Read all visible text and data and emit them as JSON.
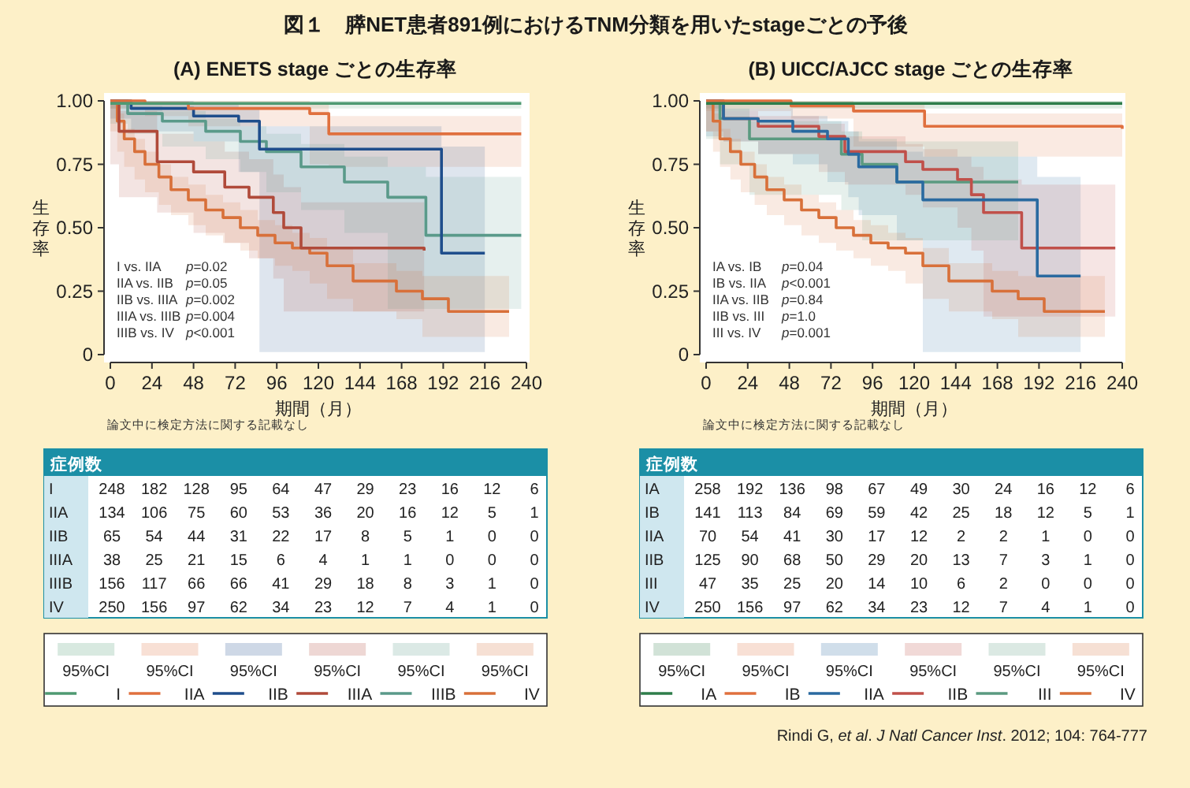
{
  "chart_data": [
    {
      "type": "step",
      "title": "(A) ENETS stage ごとの生存率",
      "xlabel": "期間（月）",
      "ylabel": "生存率",
      "xlim": [
        0,
        240
      ],
      "ylim": [
        0,
        1
      ],
      "xticks": [
        0,
        24,
        48,
        72,
        96,
        120,
        144,
        168,
        192,
        216,
        240
      ],
      "yticks": [
        0,
        {
          "value": 0.25,
          "label": "0.25"
        },
        {
          "value": 0.5,
          "label": "0.50"
        },
        {
          "value": 0.75,
          "label": "0.75"
        },
        {
          "value": 1,
          "label": "1.00"
        }
      ],
      "legend": "bottom",
      "series": [
        {
          "name": "I",
          "color": "#4f9a72",
          "x": [
            0,
            237
          ],
          "values": [
            0.99,
            0.99
          ],
          "lower": [
            0.97,
            0.97
          ],
          "upper": [
            1,
            1
          ]
        },
        {
          "name": "IIA",
          "color": "#e0703e",
          "x": [
            0,
            20,
            45,
            115,
            126,
            237
          ],
          "values": [
            1,
            0.99,
            0.97,
            0.95,
            0.87,
            0.87
          ],
          "lower": [
            1,
            0.97,
            0.94,
            0.9,
            0.75,
            0.74
          ],
          "upper": [
            1,
            1,
            1,
            0.99,
            0.94,
            0.94
          ]
        },
        {
          "name": "IIB",
          "color": "#1f4e8c",
          "x": [
            0,
            12,
            48,
            74,
            86,
            191,
            216
          ],
          "values": [
            1,
            0.97,
            0.94,
            0.92,
            0.81,
            0.4,
            0.4
          ],
          "lower": [
            1,
            0.93,
            0.88,
            0.84,
            0.72,
            0.01,
            0.01
          ],
          "upper": [
            1,
            1,
            0.99,
            0.97,
            0.9,
            0.82,
            0.82
          ]
        },
        {
          "name": "IIIA",
          "color": "#b04a3a",
          "x": [
            0,
            5,
            27,
            48,
            66,
            80,
            94,
            100,
            110,
            181
          ],
          "values": [
            1,
            0.88,
            0.76,
            0.72,
            0.66,
            0.62,
            0.56,
            0.5,
            0.42,
            0.41
          ],
          "lower": [
            1,
            0.75,
            0.62,
            0.56,
            0.48,
            0.44,
            0.38,
            0.3,
            0.17,
            0.17
          ],
          "upper": [
            1,
            0.96,
            0.87,
            0.84,
            0.8,
            0.77,
            0.71,
            0.66,
            0.6,
            0.6
          ]
        },
        {
          "name": "IIIB",
          "color": "#5a9a8a",
          "x": [
            0,
            10,
            30,
            55,
            75,
            90,
            110,
            135,
            160,
            182,
            237
          ],
          "values": [
            1,
            0.95,
            0.92,
            0.88,
            0.84,
            0.8,
            0.74,
            0.68,
            0.62,
            0.47,
            0.47
          ],
          "lower": [
            1,
            0.91,
            0.87,
            0.82,
            0.77,
            0.72,
            0.64,
            0.57,
            0.48,
            0.18,
            0.18
          ],
          "upper": [
            1,
            0.98,
            0.96,
            0.93,
            0.9,
            0.87,
            0.83,
            0.78,
            0.74,
            0.7,
            0.7
          ]
        },
        {
          "name": "IV",
          "color": "#d8703a",
          "x": [
            0,
            4,
            8,
            14,
            20,
            28,
            35,
            45,
            55,
            65,
            75,
            85,
            95,
            105,
            115,
            125,
            140,
            165,
            180,
            195,
            230
          ],
          "values": [
            1,
            0.92,
            0.85,
            0.8,
            0.75,
            0.7,
            0.65,
            0.61,
            0.57,
            0.54,
            0.5,
            0.47,
            0.44,
            0.42,
            0.4,
            0.35,
            0.29,
            0.25,
            0.22,
            0.17,
            0.17
          ],
          "lower": [
            1,
            0.88,
            0.8,
            0.74,
            0.69,
            0.64,
            0.59,
            0.55,
            0.51,
            0.47,
            0.44,
            0.41,
            0.38,
            0.35,
            0.33,
            0.28,
            0.22,
            0.17,
            0.14,
            0.07,
            0.07
          ],
          "upper": [
            1,
            0.95,
            0.89,
            0.85,
            0.8,
            0.75,
            0.7,
            0.67,
            0.63,
            0.6,
            0.57,
            0.53,
            0.51,
            0.48,
            0.46,
            0.42,
            0.36,
            0.33,
            0.31,
            0.31,
            0.31
          ]
        }
      ],
      "annotations": [
        "図１　膵NET患者891例におけるTNM分類を用いたstageごとの予後",
        "I vs. IIA *p*=0.02",
        "IIA vs. IIB *p*=0.05",
        "IIB vs. IIIA *p*=0.002",
        "IIIA vs. IIIB *p*=0.004",
        "IIIB vs. IV *p*<0.001",
        "論文中に検定方法に関する記載なし",
        "症例数",
        "I 248 182 128 95 64 47 29 23 16 12 6",
        "IIA 134 106 75 60 53 36 20 16 12 5 1",
        "IIB 65 54 44 31 22 17 8 5 1 0 0",
        "IIIA 38 25 21 15 6 4 1 1 0 0 0",
        "IIIB 156 117 66 66 41 29 18 8 3 1 0",
        "IV 250 156 97 62 34 23 12 7 4 1 0",
        "95%CI"
      ]
    },
    {
      "type": "step",
      "title": "(B) UICC/AJCC stage ごとの生存率",
      "xlabel": "期間（月）",
      "ylabel": "生存率",
      "xlim": [
        0,
        240
      ],
      "ylim": [
        0,
        1
      ],
      "xticks": [
        0,
        24,
        48,
        72,
        96,
        120,
        144,
        168,
        192,
        216,
        240
      ],
      "yticks": [
        0,
        {
          "value": 0.25,
          "label": "0.25"
        },
        {
          "value": 0.5,
          "label": "0.50"
        },
        {
          "value": 0.75,
          "label": "0.75"
        },
        {
          "value": 1,
          "label": "1.00"
        }
      ],
      "legend": "bottom",
      "series": [
        {
          "name": "IA",
          "color": "#2e7d4a",
          "x": [
            0,
            240
          ],
          "values": [
            0.99,
            0.99
          ],
          "lower": [
            0.97,
            0.97
          ],
          "upper": [
            1,
            1
          ]
        },
        {
          "name": "IB",
          "color": "#e0703e",
          "x": [
            0,
            49,
            85,
            126,
            240
          ],
          "values": [
            1,
            0.98,
            0.96,
            0.9,
            0.89
          ],
          "lower": [
            1,
            0.96,
            0.93,
            0.82,
            0.78
          ],
          "upper": [
            1,
            1,
            0.99,
            0.95,
            0.95
          ]
        },
        {
          "name": "IIA",
          "color": "#2a6aa0",
          "x": [
            0,
            10,
            30,
            50,
            70,
            82,
            88,
            110,
            125,
            191,
            216
          ],
          "values": [
            1,
            0.93,
            0.92,
            0.88,
            0.85,
            0.79,
            0.74,
            0.68,
            0.61,
            0.31,
            0.31
          ],
          "lower": [
            1,
            0.86,
            0.84,
            0.79,
            0.75,
            0.68,
            0.62,
            0.55,
            0.45,
            0.01,
            0.01
          ],
          "upper": [
            1,
            0.97,
            0.97,
            0.94,
            0.92,
            0.88,
            0.84,
            0.8,
            0.78,
            0.7,
            0.7
          ]
        },
        {
          "name": "IIB",
          "color": "#c0504a",
          "x": [
            0,
            10,
            30,
            65,
            80,
            115,
            125,
            145,
            153,
            160,
            182,
            236
          ],
          "values": [
            1,
            0.93,
            0.9,
            0.86,
            0.8,
            0.76,
            0.73,
            0.69,
            0.63,
            0.56,
            0.42,
            0.42
          ],
          "lower": [
            1,
            0.88,
            0.84,
            0.79,
            0.72,
            0.67,
            0.63,
            0.58,
            0.5,
            0.41,
            0.15,
            0.15
          ],
          "upper": [
            1,
            0.96,
            0.94,
            0.91,
            0.86,
            0.83,
            0.81,
            0.78,
            0.74,
            0.69,
            0.67,
            0.67
          ]
        },
        {
          "name": "III",
          "color": "#5a9a80",
          "x": [
            0,
            8,
            25,
            78,
            90,
            110,
            180
          ],
          "values": [
            1,
            0.93,
            0.85,
            0.79,
            0.75,
            0.68,
            0.68
          ],
          "lower": [
            1,
            0.85,
            0.75,
            0.63,
            0.57,
            0.45,
            0.45
          ],
          "upper": [
            1,
            0.97,
            0.92,
            0.88,
            0.85,
            0.84,
            0.84
          ]
        },
        {
          "name": "IV",
          "color": "#d8703a",
          "x": [
            0,
            4,
            8,
            14,
            20,
            28,
            35,
            45,
            55,
            65,
            75,
            85,
            95,
            105,
            115,
            125,
            140,
            165,
            180,
            195,
            230
          ],
          "values": [
            1,
            0.92,
            0.85,
            0.8,
            0.75,
            0.7,
            0.65,
            0.61,
            0.57,
            0.54,
            0.5,
            0.47,
            0.44,
            0.42,
            0.4,
            0.35,
            0.29,
            0.25,
            0.22,
            0.17,
            0.17
          ],
          "lower": [
            1,
            0.88,
            0.8,
            0.74,
            0.69,
            0.64,
            0.59,
            0.55,
            0.51,
            0.47,
            0.44,
            0.41,
            0.38,
            0.35,
            0.33,
            0.28,
            0.22,
            0.17,
            0.14,
            0.07,
            0.07
          ],
          "upper": [
            1,
            0.95,
            0.89,
            0.85,
            0.8,
            0.75,
            0.7,
            0.67,
            0.63,
            0.6,
            0.57,
            0.53,
            0.51,
            0.48,
            0.46,
            0.42,
            0.36,
            0.33,
            0.31,
            0.31,
            0.31
          ]
        }
      ],
      "annotations": [
        "IA vs. IB *p*=0.04",
        "IB vs. IIA *p*<0.001",
        "IIA vs. IIB *p*=0.84",
        "IIB vs. III *p*=1.0",
        "III vs. IV *p*=0.001",
        "論文中に検定方法に関する記載なし",
        "症例数",
        "IA 258 192 136 98 67 49 30 24 16 12 6",
        "IB 141 113 84 69 59 42 25 18 12 5 1",
        "IIA 70 54 41 30 17 12 2 2 1 0 0",
        "IIB 125 90 68 50 29 20 13 7 3 1 0",
        "III 47 35 25 20 14 10 6 2 0 0 0",
        "IV 250 156 97 62 34 23 12 7 4 1 0",
        "95%CI",
        "Rindi G, *et al*. *J Natl Cancer Inst*. 2012; 104: 764-777"
      ]
    }
  ]
}
